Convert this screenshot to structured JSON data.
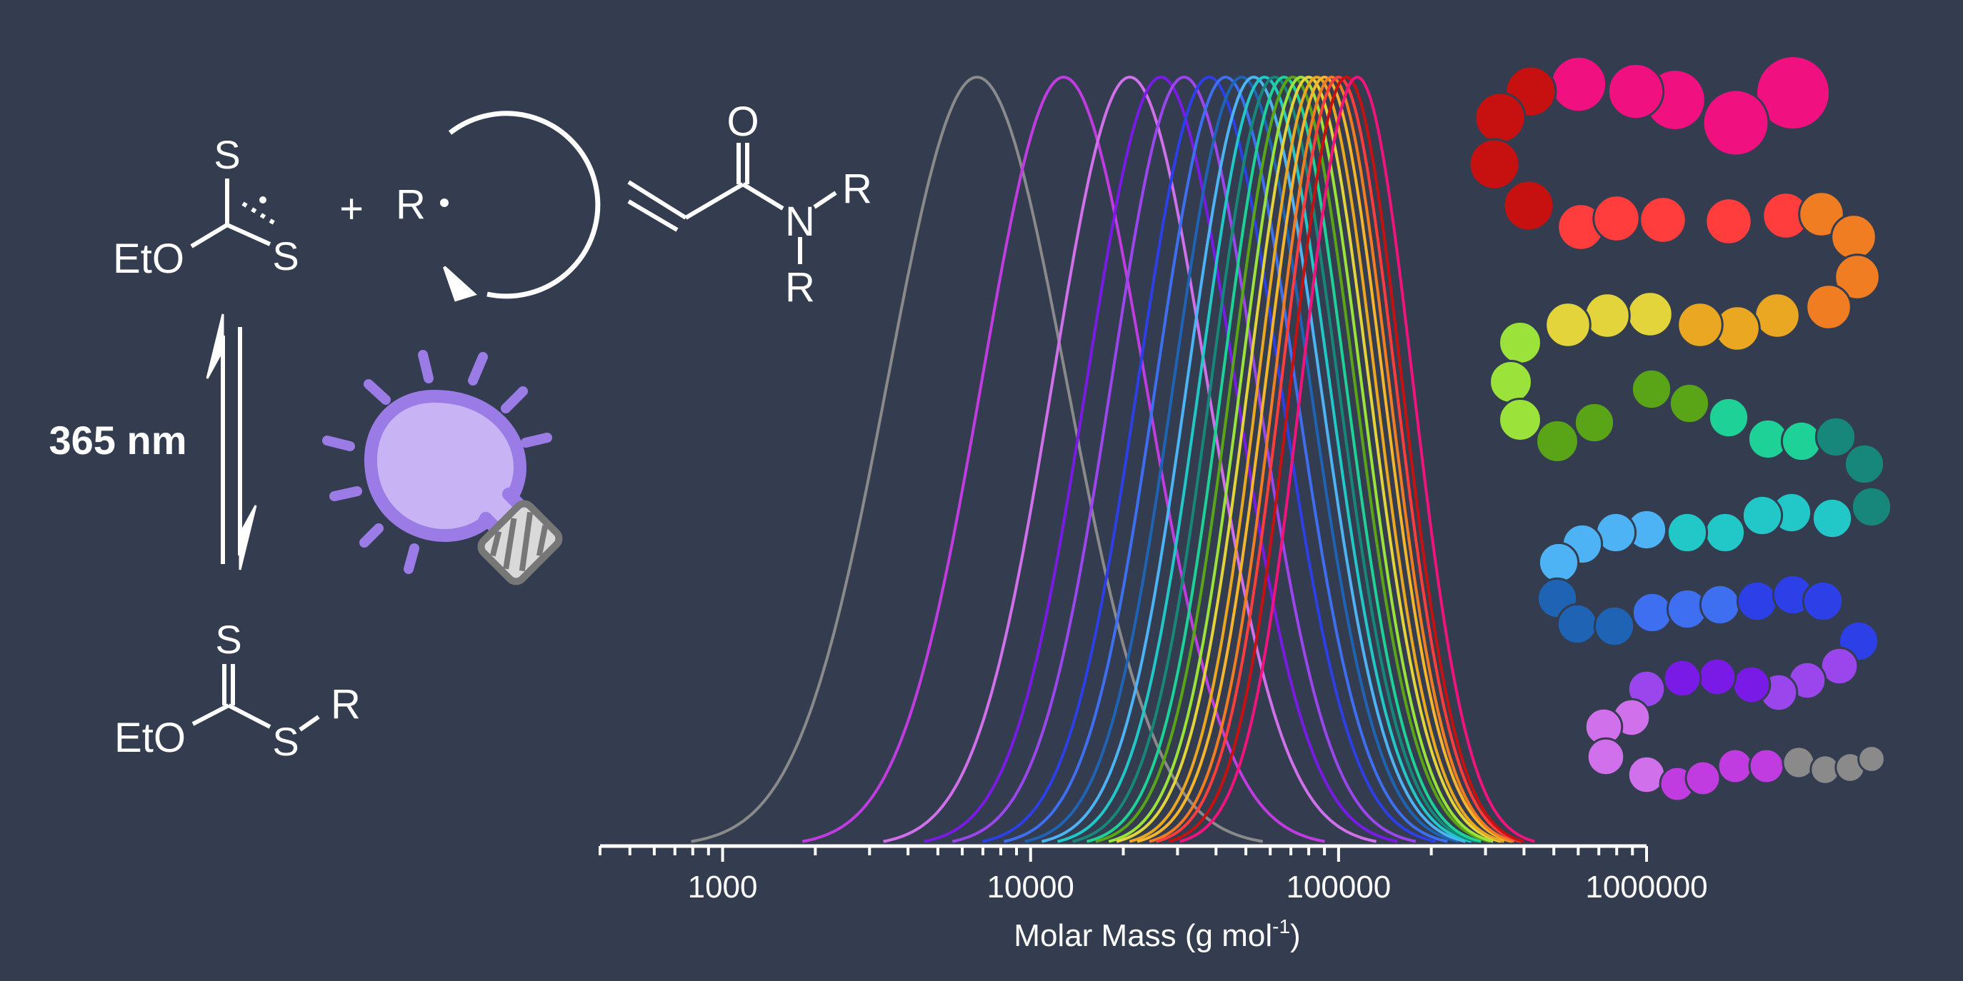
{
  "scheme": {
    "top_structure": {
      "s_top": "S",
      "s_right": "S",
      "eto": "EtO"
    },
    "plus": "+",
    "radical": "R",
    "monomer": {
      "o": "O",
      "n": "N",
      "r1": "R",
      "r2": "R"
    },
    "wavelength": "365 nm",
    "bottom_structure": {
      "s_top": "S",
      "s_mid": "S",
      "eto": "EtO",
      "r": "R"
    }
  },
  "colors": {
    "background": "#343d4f",
    "foreground": "#ffffff",
    "bulb_fill": "#c8b4f5",
    "bulb_outline": "#9b7be6",
    "ray": "#9b7be6"
  },
  "chart_data": {
    "type": "line",
    "x_scale": "log",
    "xlim": [
      400,
      1000000
    ],
    "ylim": [
      0,
      1
    ],
    "xlabel_prefix": "Molar Mass (g mol",
    "xlabel_sup": "-1",
    "xlabel_suffix": ")",
    "xticks": [
      "1000",
      "10000",
      "100000",
      "1000000"
    ],
    "xtick_values": [
      1000,
      10000,
      100000,
      1000000
    ],
    "y_axis_visible": false,
    "grid": false,
    "legend": "none",
    "curve_shape": "gaussian in log(M), normalized height 1",
    "series": [
      {
        "peak_mw": 6700,
        "log_sd": 0.29,
        "color": "#8a8a8a"
      },
      {
        "peak_mw": 12800,
        "log_sd": 0.265,
        "color": "#c13ce0"
      },
      {
        "peak_mw": 21000,
        "log_sd": 0.25,
        "color": "#d070ea"
      },
      {
        "peak_mw": 26500,
        "log_sd": 0.24,
        "color": "#7a1ae6"
      },
      {
        "peak_mw": 31500,
        "log_sd": 0.235,
        "color": "#9a46ec"
      },
      {
        "peak_mw": 38000,
        "log_sd": 0.23,
        "color": "#2d3fe6"
      },
      {
        "peak_mw": 43000,
        "log_sd": 0.225,
        "color": "#3e6ff0"
      },
      {
        "peak_mw": 48500,
        "log_sd": 0.22,
        "color": "#1e63b4"
      },
      {
        "peak_mw": 53000,
        "log_sd": 0.215,
        "color": "#4db3f4"
      },
      {
        "peak_mw": 57500,
        "log_sd": 0.21,
        "color": "#22c8c8"
      },
      {
        "peak_mw": 62000,
        "log_sd": 0.205,
        "color": "#16877a"
      },
      {
        "peak_mw": 66500,
        "log_sd": 0.2,
        "color": "#1ed197"
      },
      {
        "peak_mw": 71000,
        "log_sd": 0.2,
        "color": "#5aa418"
      },
      {
        "peak_mw": 75500,
        "log_sd": 0.195,
        "color": "#9be23a"
      },
      {
        "peak_mw": 80000,
        "log_sd": 0.195,
        "color": "#e2d43a"
      },
      {
        "peak_mw": 85000,
        "log_sd": 0.19,
        "color": "#e9a722"
      },
      {
        "peak_mw": 90000,
        "log_sd": 0.19,
        "color": "#f5b52c"
      },
      {
        "peak_mw": 95000,
        "log_sd": 0.185,
        "color": "#f07d22"
      },
      {
        "peak_mw": 100000,
        "log_sd": 0.185,
        "color": "#ff3d3d"
      },
      {
        "peak_mw": 106000,
        "log_sd": 0.18,
        "color": "#c71010"
      },
      {
        "peak_mw": 115000,
        "log_sd": 0.18,
        "color": "#f0147c"
      }
    ]
  },
  "chain_beads": [
    "#f0107f",
    "#f0107f",
    "#f0107f",
    "#f0107f",
    "#f0107f",
    "#c71010",
    "#c71010",
    "#c71010",
    "#c71010",
    "#ff3d3d",
    "#ff3d3d",
    "#ff3d3d",
    "#ff3d3d",
    "#ff3d3d",
    "#f07d22",
    "#f07d22",
    "#f07d22",
    "#f07d22",
    "#e9a722",
    "#e9a722",
    "#e9a722",
    "#e2d43a",
    "#e2d43a",
    "#e2d43a",
    "#9be23a",
    "#9be23a",
    "#9be23a",
    "#5aa418",
    "#5aa418",
    "#5aa418",
    "#5aa418",
    "#1ed197",
    "#1ed197",
    "#1ed197",
    "#16877a",
    "#16877a",
    "#16877a",
    "#22c8c8",
    "#22c8c8",
    "#22c8c8",
    "#22c8c8",
    "#22c8c8",
    "#4db3f4",
    "#4db3f4",
    "#4db3f4",
    "#4db3f4",
    "#1e63b4",
    "#1e63b4",
    "#1e63b4",
    "#3e6ff0",
    "#3e6ff0",
    "#3e6ff0",
    "#2d3fe6",
    "#2d3fe6",
    "#2d3fe6",
    "#2d3fe6",
    "#9a46ec",
    "#9a46ec",
    "#9a46ec",
    "#7a1ae6",
    "#7a1ae6",
    "#7a1ae6",
    "#9a46ec",
    "#d070ea",
    "#d070ea",
    "#d070ea",
    "#d070ea",
    "#c13ce0",
    "#c13ce0",
    "#c13ce0",
    "#c13ce0",
    "#8a8a8a",
    "#8a8a8a",
    "#8a8a8a",
    "#8a8a8a"
  ]
}
